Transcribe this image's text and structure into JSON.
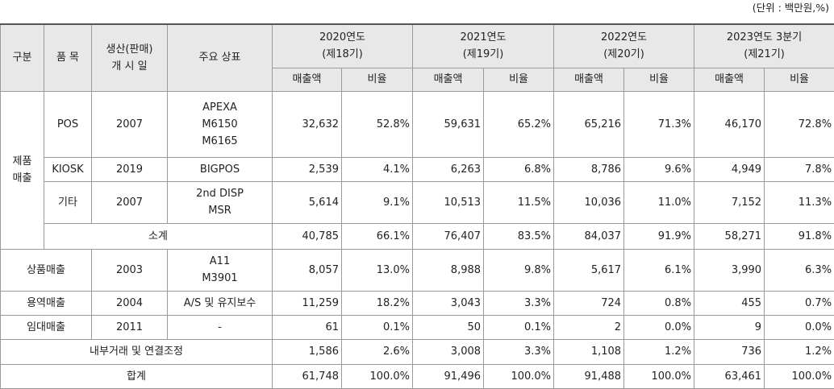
{
  "unit_note": "(단위 : 백만원,%)",
  "header": {
    "category": "구분",
    "item": "품 목",
    "launch_line1": "생산(판매)",
    "launch_line2": "개 시 일",
    "brand": "주요 상표",
    "years": [
      {
        "year": "2020연도",
        "period": "(제18기)"
      },
      {
        "year": "2021연도",
        "period": "(제19기)"
      },
      {
        "year": "2022연도",
        "period": "(제20기)"
      },
      {
        "year": "2023연도 3분기",
        "period": "(제21기)"
      }
    ],
    "sales": "매출액",
    "ratio": "비율"
  },
  "product_group": {
    "line1": "제품",
    "line2": "매출"
  },
  "rows": {
    "pos": {
      "item": "POS",
      "launch": "2007",
      "brands": [
        "APEXA",
        "M6150",
        "M6165"
      ],
      "values": [
        "32,632",
        "52.8%",
        "59,631",
        "65.2%",
        "65,216",
        "71.3%",
        "46,170",
        "72.8%"
      ]
    },
    "kiosk": {
      "item": "KIOSK",
      "launch": "2019",
      "brands": [
        "BIGPOS"
      ],
      "values": [
        "2,539",
        "4.1%",
        "6,263",
        "6.8%",
        "8,786",
        "9.6%",
        "4,949",
        "7.8%"
      ]
    },
    "etc": {
      "item": "기타",
      "launch": "2007",
      "brands": [
        "2nd DISP",
        "MSR"
      ],
      "values": [
        "5,614",
        "9.1%",
        "10,513",
        "11.5%",
        "10,036",
        "11.0%",
        "7,152",
        "11.3%"
      ]
    },
    "subtotal": {
      "label": "소계",
      "values": [
        "40,785",
        "66.1%",
        "76,407",
        "83.5%",
        "84,037",
        "91.9%",
        "58,271",
        "91.8%"
      ]
    },
    "goods": {
      "label": "상품매출",
      "launch": "2003",
      "brands": [
        "A11",
        "M3901"
      ],
      "values": [
        "8,057",
        "13.0%",
        "8,988",
        "9.8%",
        "5,617",
        "6.1%",
        "3,990",
        "6.3%"
      ]
    },
    "service": {
      "label": "용역매출",
      "launch": "2004",
      "brands": [
        "A/S 및 유지보수"
      ],
      "values": [
        "11,259",
        "18.2%",
        "3,043",
        "3.3%",
        "724",
        "0.8%",
        "455",
        "0.7%"
      ]
    },
    "rental": {
      "label": "임대매출",
      "launch": "2011",
      "brands": [
        "-"
      ],
      "values": [
        "61",
        "0.1%",
        "50",
        "0.1%",
        "2",
        "0.0%",
        "9",
        "0.0%"
      ]
    },
    "adjust": {
      "label": "내부거래 및 연결조정",
      "values": [
        "1,586",
        "2.6%",
        "3,008",
        "3.3%",
        "1,108",
        "1.2%",
        "736",
        "1.2%"
      ]
    },
    "total": {
      "label": "합계",
      "values": [
        "61,748",
        "100.0%",
        "91,496",
        "100.0%",
        "91,488",
        "100.0%",
        "63,461",
        "100.0%"
      ]
    }
  }
}
